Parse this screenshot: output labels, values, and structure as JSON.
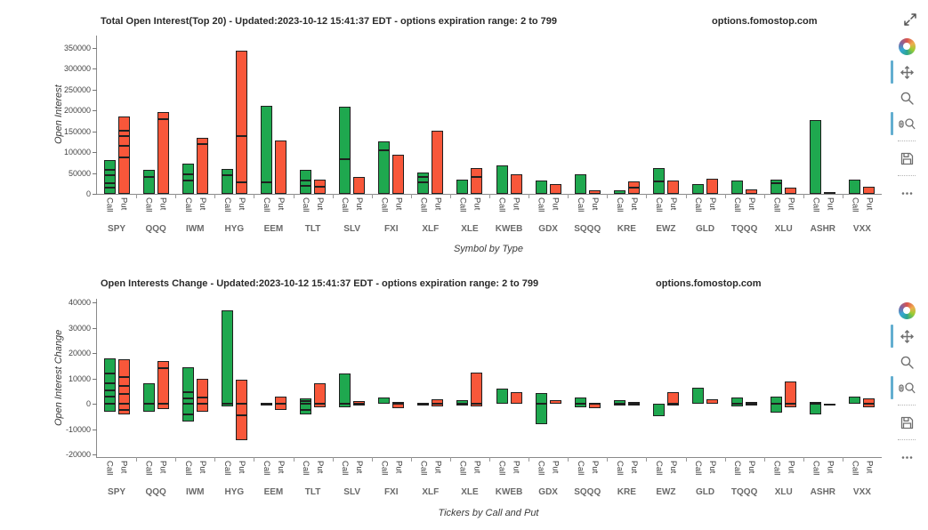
{
  "window": {
    "expand_icon": "diagonal-expand-arrows"
  },
  "toolbar": {
    "tools": [
      "bokeh-logo",
      "pan",
      "box-zoom",
      "wheel-zoom",
      "save",
      "more"
    ],
    "active_tools": [
      "pan",
      "wheel-zoom"
    ],
    "accent_color": "#63aed0"
  },
  "labels": {
    "call": "Call",
    "put": "Put"
  },
  "colors": {
    "call": "#1fa84f",
    "put": "#f8573a",
    "outline": "#1f1f1f"
  },
  "chart_data": [
    {
      "type": "bar",
      "title": "Total Open Interest(Top 20) - Updated:2023-10-12 15:41:37 EDT - options expiration range: 2 to 799",
      "watermark": "options.fomostop.com",
      "ylabel": "Open Interest",
      "xlabel": "Symbol by Type",
      "ylim": [
        0,
        380000
      ],
      "yticks": [
        0,
        50000,
        100000,
        150000,
        200000,
        250000,
        300000,
        350000
      ],
      "series": [
        "Call",
        "Put"
      ],
      "categories": [
        "SPY",
        "QQQ",
        "IWM",
        "HYG",
        "EEM",
        "TLT",
        "SLV",
        "FXI",
        "XLF",
        "XLE",
        "KWEB",
        "GDX",
        "SQQQ",
        "KRE",
        "EWZ",
        "GLD",
        "TQQQ",
        "XLU",
        "ASHR",
        "VXX"
      ],
      "bars": [
        {
          "ticker": "SPY",
          "call_pos": [
            14000,
            11000,
            19000,
            14000,
            23000
          ],
          "put_pos": [
            88000,
            28000,
            22000,
            14000,
            33000
          ]
        },
        {
          "ticker": "QQQ",
          "call_pos": [
            40000,
            17000
          ],
          "put_pos": [
            180000,
            16000
          ]
        },
        {
          "ticker": "IWM",
          "call_pos": [
            33000,
            15000,
            24000
          ],
          "put_pos": [
            120000,
            14000
          ]
        },
        {
          "ticker": "HYG",
          "call_pos": [
            45000,
            14000
          ],
          "put_pos": [
            28000,
            111000,
            204000
          ]
        },
        {
          "ticker": "EEM",
          "call_pos": [
            28000,
            183000
          ],
          "put_pos": [
            128000
          ]
        },
        {
          "ticker": "TLT",
          "call_pos": [
            20000,
            12000,
            25000
          ],
          "put_pos": [
            18000,
            17000
          ]
        },
        {
          "ticker": "SLV",
          "call_pos": [
            84000,
            125000
          ],
          "put_pos": [
            40000
          ]
        },
        {
          "ticker": "FXI",
          "call_pos": [
            105000,
            20000
          ],
          "put_pos": [
            95000
          ]
        },
        {
          "ticker": "XLF",
          "call_pos": [
            28000,
            12000,
            11000
          ],
          "put_pos": [
            152000
          ]
        },
        {
          "ticker": "XLE",
          "call_pos": [
            35000
          ],
          "put_pos": [
            40000,
            22000
          ]
        },
        {
          "ticker": "KWEB",
          "call_pos": [
            68000
          ],
          "put_pos": [
            48000
          ]
        },
        {
          "ticker": "GDX",
          "call_pos": [
            33000
          ],
          "put_pos": [
            24000
          ]
        },
        {
          "ticker": "SQQQ",
          "call_pos": [
            48000
          ],
          "put_pos": [
            9000
          ]
        },
        {
          "ticker": "KRE",
          "call_pos": [
            9000
          ],
          "put_pos": [
            14000,
            15000
          ]
        },
        {
          "ticker": "EWZ",
          "call_pos": [
            30000,
            32000
          ],
          "put_pos": [
            33000
          ]
        },
        {
          "ticker": "GLD",
          "call_pos": [
            24000
          ],
          "put_pos": [
            37000
          ]
        },
        {
          "ticker": "TQQQ",
          "call_pos": [
            31000
          ],
          "put_pos": [
            11000
          ]
        },
        {
          "ticker": "XLU",
          "call_pos": [
            25000,
            10000
          ],
          "put_pos": [
            15000
          ]
        },
        {
          "ticker": "ASHR",
          "call_pos": [
            178000
          ],
          "put_pos": [
            4000
          ]
        },
        {
          "ticker": "VXX",
          "call_pos": [
            35000
          ],
          "put_pos": [
            18000
          ]
        }
      ]
    },
    {
      "type": "bar",
      "title": "Open Interests Change - Updated:2023-10-12 15:41:37 EDT - options expiration range: 2 to 799",
      "watermark": "options.fomostop.com",
      "ylabel": "Open Interest Change",
      "xlabel": "Tickers by Call and Put",
      "ylim": [
        -21000,
        41500
      ],
      "yticks": [
        -20000,
        -10000,
        0,
        10000,
        20000,
        30000,
        40000
      ],
      "series": [
        "Call",
        "Put"
      ],
      "categories": [
        "SPY",
        "QQQ",
        "IWM",
        "HYG",
        "EEM",
        "TLT",
        "SLV",
        "FXI",
        "XLF",
        "XLE",
        "KWEB",
        "GDX",
        "SQQQ",
        "KRE",
        "EWZ",
        "GLD",
        "TQQQ",
        "XLU",
        "ASHR",
        "VXX"
      ],
      "bars": [
        {
          "ticker": "SPY",
          "call_pos": [
            3000,
            2500,
            2500,
            4000,
            6000
          ],
          "call_neg": [
            3000
          ],
          "put_pos": [
            4000,
            3000,
            3500,
            7000
          ],
          "put_neg": [
            2500,
            1500
          ]
        },
        {
          "ticker": "QQQ",
          "call_pos": [
            8000
          ],
          "call_neg": [
            3000
          ],
          "put_pos": [
            14000,
            2800
          ],
          "put_neg": [
            2000
          ]
        },
        {
          "ticker": "IWM",
          "call_pos": [
            2000,
            2500,
            10000
          ],
          "call_neg": [
            4000,
            3000
          ],
          "put_pos": [
            2500,
            7500
          ],
          "put_neg": [
            3000
          ]
        },
        {
          "ticker": "HYG",
          "call_pos": [
            36800
          ],
          "call_neg": [
            1000
          ],
          "put_pos": [
            9500
          ],
          "put_neg": [
            4500,
            10000
          ]
        },
        {
          "ticker": "EEM",
          "call_pos": [
            300
          ],
          "call_neg": [
            700
          ],
          "put_pos": [
            3000
          ],
          "put_neg": [
            2500
          ]
        },
        {
          "ticker": "TLT",
          "call_pos": [
            1200,
            800
          ],
          "call_neg": [
            2500,
            1500
          ],
          "put_pos": [
            8300
          ],
          "put_neg": [
            1500
          ]
        },
        {
          "ticker": "SLV",
          "call_pos": [
            12000
          ],
          "call_neg": [
            1500
          ],
          "put_pos": [
            1000
          ],
          "put_neg": [
            700
          ]
        },
        {
          "ticker": "FXI",
          "call_pos": [
            2500
          ],
          "call_neg": [],
          "put_pos": [
            800
          ],
          "put_neg": [
            1800
          ]
        },
        {
          "ticker": "XLF",
          "call_pos": [
            500
          ],
          "call_neg": [
            500
          ],
          "put_pos": [
            1700
          ],
          "put_neg": [
            1000
          ]
        },
        {
          "ticker": "XLE",
          "call_pos": [
            1300
          ],
          "call_neg": [
            500
          ],
          "put_pos": [
            12300
          ],
          "put_neg": [
            1000
          ]
        },
        {
          "ticker": "KWEB",
          "call_pos": [
            6000
          ],
          "call_neg": [],
          "put_pos": [
            4700
          ],
          "put_neg": []
        },
        {
          "ticker": "GDX",
          "call_pos": [
            4300
          ],
          "call_neg": [
            8000
          ],
          "put_pos": [
            1300
          ],
          "put_neg": []
        },
        {
          "ticker": "SQQQ",
          "call_pos": [
            2400
          ],
          "call_neg": [
            1300
          ],
          "put_pos": [
            400
          ],
          "put_neg": [
            1700
          ]
        },
        {
          "ticker": "KRE",
          "call_pos": [
            1300
          ],
          "call_neg": [
            500
          ],
          "put_pos": [
            600
          ],
          "put_neg": [
            400
          ]
        },
        {
          "ticker": "EWZ",
          "call_pos": [
            200
          ],
          "call_neg": [
            5000
          ],
          "put_pos": [
            4600
          ],
          "put_neg": [
            400
          ]
        },
        {
          "ticker": "GLD",
          "call_pos": [
            6400
          ],
          "call_neg": [],
          "put_pos": [
            1700
          ],
          "put_neg": []
        },
        {
          "ticker": "TQQQ",
          "call_pos": [
            2400
          ],
          "call_neg": [
            1000
          ],
          "put_pos": [
            800
          ],
          "put_neg": [
            400
          ]
        },
        {
          "ticker": "XLU",
          "call_pos": [
            2800
          ],
          "call_neg": [
            3300
          ],
          "put_pos": [
            9000
          ],
          "put_neg": [
            1500
          ]
        },
        {
          "ticker": "ASHR",
          "call_pos": [
            700
          ],
          "call_neg": [
            4000
          ],
          "put_pos": [
            200
          ],
          "put_neg": [
            200
          ]
        },
        {
          "ticker": "VXX",
          "call_pos": [
            2800
          ],
          "call_neg": [],
          "put_pos": [
            2200
          ],
          "put_neg": [
            1400
          ]
        }
      ]
    }
  ]
}
